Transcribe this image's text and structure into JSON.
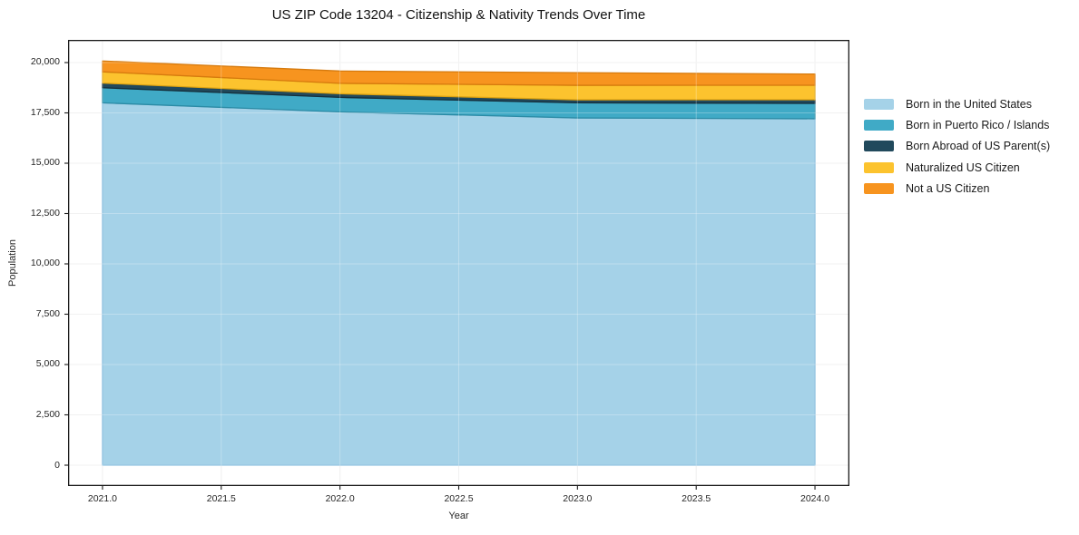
{
  "chart_data": {
    "type": "area",
    "stacked": true,
    "title": "US ZIP Code 13204 - Citizenship & Nativity Trends Over Time",
    "xlabel": "Year",
    "ylabel": "Population",
    "x": [
      2021,
      2022,
      2023,
      2024
    ],
    "series": [
      {
        "name": "Born in the United States",
        "color": "#a5d2e8",
        "edge_color": "#7ab6da",
        "values": [
          18000,
          17550,
          17250,
          17210
        ]
      },
      {
        "name": "Born in Puerto Rico / Islands",
        "color": "#40aac6",
        "edge_color": "#2b8ba5",
        "values": [
          750,
          720,
          750,
          765
        ]
      },
      {
        "name": "Born Abroad of US Parent(s)",
        "color": "#21495c",
        "edge_color": "#152f3c",
        "values": [
          230,
          180,
          150,
          180
        ]
      },
      {
        "name": "Naturalized US Citizen",
        "color": "#fcc32e",
        "edge_color": "#dda312",
        "values": [
          560,
          520,
          720,
          720
        ]
      },
      {
        "name": "Not a US Citizen",
        "color": "#f7941f",
        "edge_color": "#d67a0d",
        "values": [
          540,
          610,
          630,
          555
        ]
      }
    ],
    "stack_totals": [
      20080,
      19580,
      19500,
      19430
    ],
    "x_tick_values": [
      2021.0,
      2021.5,
      2022.0,
      2022.5,
      2023.0,
      2023.5,
      2024.0
    ],
    "x_tick_labels": [
      "2021.0",
      "2021.5",
      "2022.0",
      "2022.5",
      "2023.0",
      "2023.5",
      "2024.0"
    ],
    "y_tick_values": [
      0,
      2500,
      5000,
      7500,
      10000,
      12500,
      15000,
      17500,
      20000
    ],
    "y_tick_labels": [
      "0",
      "2,500",
      "5,000",
      "7,500",
      "10,000",
      "12,500",
      "15,000",
      "17,500",
      "20,000"
    ],
    "xlim": [
      2020.855,
      2024.145
    ],
    "ylim": [
      -1036,
      21126
    ],
    "grid": true,
    "grid_color": "#ececec",
    "frame_color": "#1a1a1a",
    "legend_position": "right outside"
  }
}
